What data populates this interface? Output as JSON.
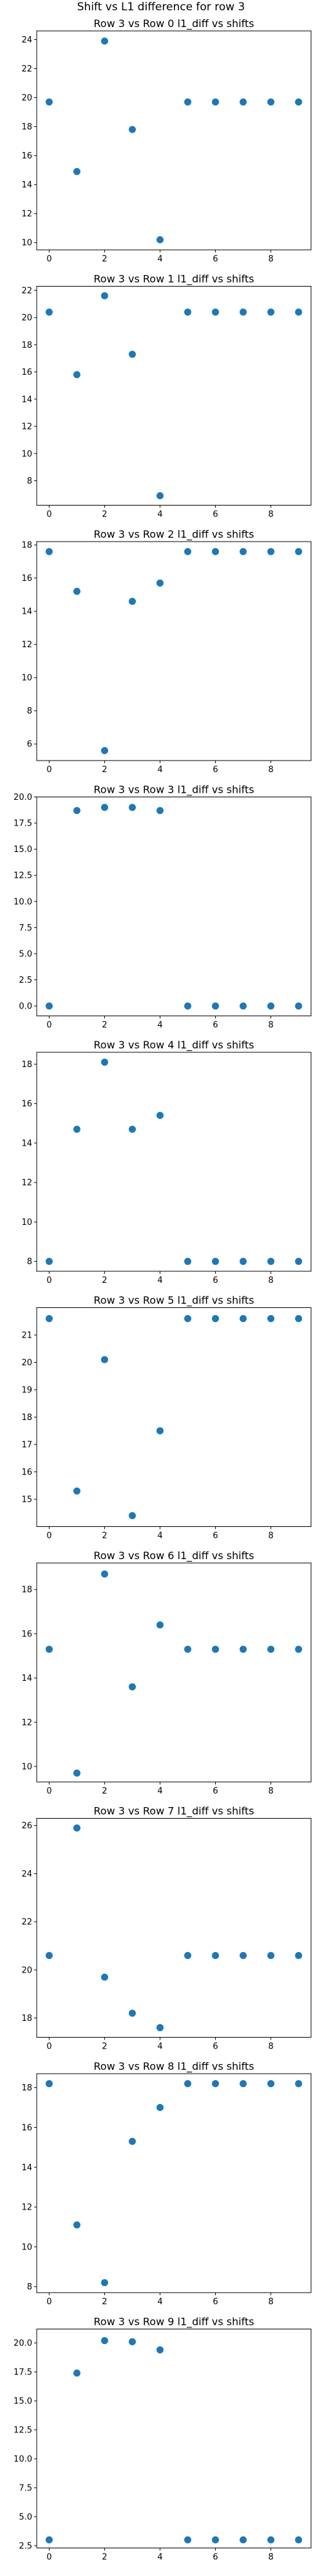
{
  "figure": {
    "suptitle": "Shift vs L1 difference for row 3"
  },
  "style": {
    "marker_color": "#1f77b4"
  },
  "chart_data": [
    {
      "type": "scatter",
      "title": "Row 3 vs Row 0 l1_diff vs shifts",
      "x": [
        0,
        1,
        2,
        3,
        4,
        5,
        6,
        7,
        8,
        9
      ],
      "y": [
        19.7,
        14.9,
        23.9,
        17.8,
        10.2,
        19.7,
        19.7,
        19.7,
        19.7,
        19.7
      ],
      "xlim": [
        -0.45,
        9.45
      ],
      "ylim": [
        9.5,
        24.6
      ],
      "xticks": [
        0,
        2,
        4,
        6,
        8
      ],
      "yticks": [
        10,
        12,
        14,
        16,
        18,
        20,
        22,
        24
      ],
      "ytick_labels": [
        "10",
        "12",
        "14",
        "16",
        "18",
        "20",
        "22",
        "24"
      ]
    },
    {
      "type": "scatter",
      "title": "Row 3 vs Row 1 l1_diff vs shifts",
      "x": [
        0,
        1,
        2,
        3,
        4,
        5,
        6,
        7,
        8,
        9
      ],
      "y": [
        20.4,
        15.8,
        21.6,
        17.3,
        6.9,
        20.4,
        20.4,
        20.4,
        20.4,
        20.4
      ],
      "xlim": [
        -0.45,
        9.45
      ],
      "ylim": [
        6.2,
        22.3
      ],
      "xticks": [
        0,
        2,
        4,
        6,
        8
      ],
      "yticks": [
        8,
        10,
        12,
        14,
        16,
        18,
        20,
        22
      ],
      "ytick_labels": [
        "8",
        "10",
        "12",
        "14",
        "16",
        "18",
        "20",
        "22"
      ]
    },
    {
      "type": "scatter",
      "title": "Row 3 vs Row 2 l1_diff vs shifts",
      "x": [
        0,
        1,
        2,
        3,
        4,
        5,
        6,
        7,
        8,
        9
      ],
      "y": [
        17.6,
        15.2,
        5.6,
        14.6,
        15.7,
        17.6,
        17.6,
        17.6,
        17.6,
        17.6
      ],
      "xlim": [
        -0.45,
        9.45
      ],
      "ylim": [
        5.0,
        18.2
      ],
      "xticks": [
        0,
        2,
        4,
        6,
        8
      ],
      "yticks": [
        6,
        8,
        10,
        12,
        14,
        16,
        18
      ],
      "ytick_labels": [
        "6",
        "8",
        "10",
        "12",
        "14",
        "16",
        "18"
      ]
    },
    {
      "type": "scatter",
      "title": "Row 3 vs Row 3 l1_diff vs shifts",
      "x": [
        0,
        1,
        2,
        3,
        4,
        5,
        6,
        7,
        8,
        9
      ],
      "y": [
        0.0,
        18.7,
        19.0,
        19.0,
        18.7,
        0.0,
        0.0,
        0.0,
        0.0,
        0.0
      ],
      "xlim": [
        -0.45,
        9.45
      ],
      "ylim": [
        -0.95,
        20.0
      ],
      "xticks": [
        0,
        2,
        4,
        6,
        8
      ],
      "yticks": [
        0,
        2.5,
        5,
        7.5,
        10,
        12.5,
        15,
        17.5,
        20
      ],
      "ytick_labels": [
        "0.0",
        "2.5",
        "5.0",
        "7.5",
        "10.0",
        "12.5",
        "15.0",
        "17.5",
        "20.0"
      ]
    },
    {
      "type": "scatter",
      "title": "Row 3 vs Row 4 l1_diff vs shifts",
      "x": [
        0,
        1,
        2,
        3,
        4,
        5,
        6,
        7,
        8,
        9
      ],
      "y": [
        8.0,
        14.7,
        18.1,
        14.7,
        15.4,
        8.0,
        8.0,
        8.0,
        8.0,
        8.0
      ],
      "xlim": [
        -0.45,
        9.45
      ],
      "ylim": [
        7.5,
        18.6
      ],
      "xticks": [
        0,
        2,
        4,
        6,
        8
      ],
      "yticks": [
        8,
        10,
        12,
        14,
        16,
        18
      ],
      "ytick_labels": [
        "8",
        "10",
        "12",
        "14",
        "16",
        "18"
      ]
    },
    {
      "type": "scatter",
      "title": "Row 3 vs Row 5 l1_diff vs shifts",
      "x": [
        0,
        1,
        2,
        3,
        4,
        5,
        6,
        7,
        8,
        9
      ],
      "y": [
        21.6,
        15.3,
        20.1,
        14.4,
        17.5,
        21.6,
        21.6,
        21.6,
        21.6,
        21.6
      ],
      "xlim": [
        -0.45,
        9.45
      ],
      "ylim": [
        14.0,
        22.0
      ],
      "xticks": [
        0,
        2,
        4,
        6,
        8
      ],
      "yticks": [
        15,
        16,
        17,
        18,
        19,
        20,
        21
      ],
      "ytick_labels": [
        "15",
        "16",
        "17",
        "18",
        "19",
        "20",
        "21"
      ]
    },
    {
      "type": "scatter",
      "title": "Row 3 vs Row 6 l1_diff vs shifts",
      "x": [
        0,
        1,
        2,
        3,
        4,
        5,
        6,
        7,
        8,
        9
      ],
      "y": [
        15.3,
        9.7,
        18.7,
        13.6,
        16.4,
        15.3,
        15.3,
        15.3,
        15.3,
        15.3
      ],
      "xlim": [
        -0.45,
        9.45
      ],
      "ylim": [
        9.3,
        19.2
      ],
      "xticks": [
        0,
        2,
        4,
        6,
        8
      ],
      "yticks": [
        10,
        12,
        14,
        16,
        18
      ],
      "ytick_labels": [
        "10",
        "12",
        "14",
        "16",
        "18"
      ]
    },
    {
      "type": "scatter",
      "title": "Row 3 vs Row 7 l1_diff vs shifts",
      "x": [
        0,
        1,
        2,
        3,
        4,
        5,
        6,
        7,
        8,
        9
      ],
      "y": [
        20.6,
        25.9,
        19.7,
        18.2,
        17.6,
        20.6,
        20.6,
        20.6,
        20.6,
        20.6
      ],
      "xlim": [
        -0.45,
        9.45
      ],
      "ylim": [
        17.2,
        26.3
      ],
      "xticks": [
        0,
        2,
        4,
        6,
        8
      ],
      "yticks": [
        18,
        20,
        22,
        24,
        26
      ],
      "ytick_labels": [
        "18",
        "20",
        "22",
        "24",
        "26"
      ]
    },
    {
      "type": "scatter",
      "title": "Row 3 vs Row 8 l1_diff vs shifts",
      "x": [
        0,
        1,
        2,
        3,
        4,
        5,
        6,
        7,
        8,
        9
      ],
      "y": [
        18.2,
        11.1,
        8.2,
        15.3,
        17.0,
        18.2,
        18.2,
        18.2,
        18.2,
        18.2
      ],
      "xlim": [
        -0.45,
        9.45
      ],
      "ylim": [
        7.7,
        18.7
      ],
      "xticks": [
        0,
        2,
        4,
        6,
        8
      ],
      "yticks": [
        8,
        10,
        12,
        14,
        16,
        18
      ],
      "ytick_labels": [
        "8",
        "10",
        "12",
        "14",
        "16",
        "18"
      ]
    },
    {
      "type": "scatter",
      "title": "Row 3 vs Row 9 l1_diff vs shifts",
      "x": [
        0,
        1,
        2,
        3,
        4,
        5,
        6,
        7,
        8,
        9
      ],
      "y": [
        3.0,
        17.4,
        20.2,
        20.1,
        19.4,
        3.0,
        3.0,
        3.0,
        3.0,
        3.0
      ],
      "xlim": [
        -0.45,
        9.45
      ],
      "ylim": [
        2.3,
        21.2
      ],
      "xticks": [
        0,
        2,
        4,
        6,
        8
      ],
      "yticks": [
        2.5,
        5,
        7.5,
        10,
        12.5,
        15,
        17.5,
        20
      ],
      "ytick_labels": [
        "2.5",
        "5.0",
        "7.5",
        "10.0",
        "12.5",
        "15.0",
        "17.5",
        "20.0"
      ]
    }
  ]
}
